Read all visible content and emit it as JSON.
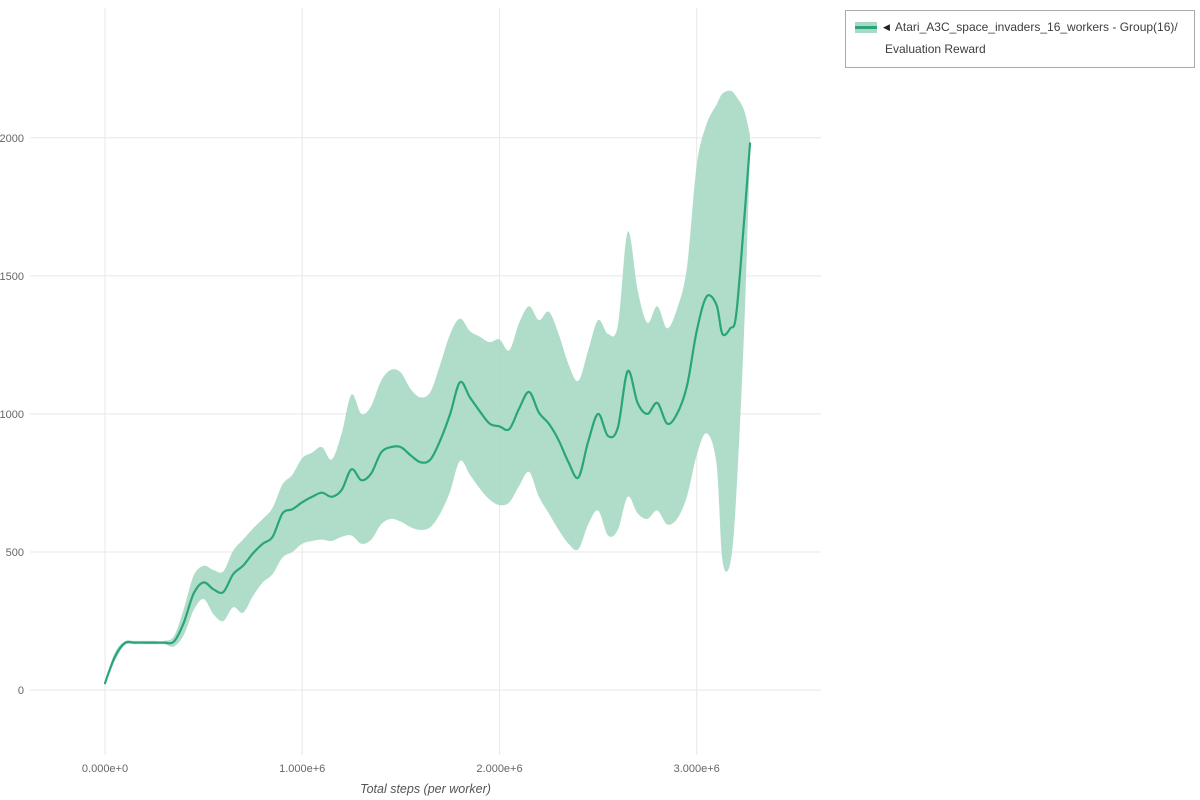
{
  "legend": {
    "marker": "◀",
    "series_name": "Atari_A3C_space_invaders_16_workers - Group(16)/",
    "metric_name": "Evaluation Reward"
  },
  "axes": {
    "x_label": "Total steps (per worker)",
    "x_ticks": [
      "0.000e+0",
      "1.000e+6",
      "2.000e+6",
      "3.000e+6"
    ],
    "y_ticks": [
      "0",
      "500",
      "1000",
      "1500",
      "2000"
    ]
  },
  "colors": {
    "line": "#29a579",
    "band": "#a7d9c4",
    "grid": "#e8e8e8",
    "tick_text": "#666666"
  },
  "chart_data": {
    "type": "line",
    "title": "",
    "xlabel": "Total steps (per worker)",
    "ylabel": "",
    "x_unit": "millions of steps (per worker)",
    "legend_position": "top-right outside",
    "grid": true,
    "xlim": [
      -0.38,
      3.63
    ],
    "ylim": [
      -235,
      2470
    ],
    "x_ticks": [
      0,
      1,
      2,
      3
    ],
    "x_tick_labels": [
      "0.000e+0",
      "1.000e+6",
      "2.000e+6",
      "3.000e+6"
    ],
    "y_ticks": [
      0,
      500,
      1000,
      1500,
      2000
    ],
    "x": [
      0,
      0.05,
      0.1,
      0.15,
      0.2,
      0.25,
      0.3,
      0.35,
      0.4,
      0.45,
      0.5,
      0.55,
      0.6,
      0.65,
      0.7,
      0.75,
      0.8,
      0.85,
      0.9,
      0.95,
      1,
      1.05,
      1.1,
      1.15,
      1.2,
      1.25,
      1.3,
      1.35,
      1.4,
      1.45,
      1.5,
      1.55,
      1.6,
      1.65,
      1.7,
      1.75,
      1.8,
      1.85,
      1.9,
      1.95,
      2,
      2.05,
      2.1,
      2.15,
      2.2,
      2.25,
      2.3,
      2.35,
      2.4,
      2.45,
      2.5,
      2.55,
      2.6,
      2.65,
      2.7,
      2.75,
      2.8,
      2.85,
      2.9,
      2.95,
      3,
      3.05,
      3.1,
      3.13,
      3.17,
      3.2,
      3.24,
      3.27
    ],
    "series": [
      {
        "name": "Atari_A3C_space_invaders_16_workers - Group(16)/ Evaluation Reward (mean)",
        "values": [
          25,
          120,
          170,
          172,
          172,
          172,
          172,
          176,
          245,
          350,
          390,
          365,
          355,
          420,
          450,
          495,
          530,
          555,
          640,
          655,
          680,
          700,
          715,
          700,
          725,
          800,
          760,
          785,
          860,
          880,
          880,
          850,
          825,
          835,
          905,
          1000,
          1115,
          1060,
          1010,
          965,
          955,
          945,
          1020,
          1080,
          1005,
          965,
          905,
          825,
          770,
          900,
          1000,
          920,
          950,
          1155,
          1040,
          1000,
          1040,
          965,
          1000,
          1100,
          1300,
          1425,
          1395,
          1290,
          1310,
          1360,
          1700,
          1980
        ]
      },
      {
        "name": "band_lower",
        "values": [
          20,
          105,
          163,
          166,
          166,
          166,
          166,
          158,
          200,
          290,
          330,
          275,
          250,
          300,
          280,
          340,
          390,
          420,
          480,
          500,
          530,
          540,
          545,
          540,
          555,
          560,
          530,
          545,
          600,
          620,
          610,
          590,
          580,
          590,
          640,
          720,
          830,
          780,
          730,
          690,
          670,
          680,
          740,
          790,
          700,
          640,
          580,
          530,
          510,
          600,
          650,
          560,
          580,
          700,
          640,
          620,
          650,
          600,
          620,
          700,
          850,
          930,
          820,
          470,
          460,
          700,
          1300,
          1950
        ]
      },
      {
        "name": "band_upper",
        "values": [
          30,
          135,
          177,
          178,
          178,
          178,
          178,
          196,
          295,
          415,
          450,
          435,
          430,
          505,
          545,
          585,
          620,
          660,
          745,
          780,
          840,
          860,
          880,
          835,
          930,
          1070,
          1000,
          1030,
          1120,
          1160,
          1150,
          1090,
          1060,
          1080,
          1180,
          1290,
          1345,
          1300,
          1280,
          1260,
          1270,
          1230,
          1330,
          1390,
          1340,
          1370,
          1290,
          1180,
          1120,
          1230,
          1340,
          1290,
          1320,
          1660,
          1450,
          1330,
          1390,
          1310,
          1380,
          1530,
          1900,
          2050,
          2120,
          2160,
          2170,
          2150,
          2100,
          2010
        ]
      }
    ]
  }
}
